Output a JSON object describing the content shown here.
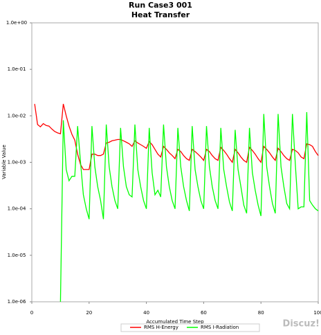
{
  "chart_data": {
    "type": "line",
    "title": "Run Case3 001",
    "subtitle": "Heat Transfer",
    "x_label": "Accumulated Time Step",
    "y_label": "Variable Value",
    "log_scale_y": true,
    "legend": "bottom",
    "watermark": "Discuz!",
    "xlim": [
      0,
      100
    ],
    "xticks": [
      0,
      20,
      40,
      60,
      80,
      100
    ],
    "ylim": [
      1e-06,
      1
    ],
    "yticks": [
      {
        "value": 1e-06,
        "label": "1.0e-06"
      },
      {
        "value": 1e-05,
        "label": "1.0e-05"
      },
      {
        "value": 0.0001,
        "label": "1.0e-04"
      },
      {
        "value": 0.001,
        "label": "1.0e-03"
      },
      {
        "value": 0.01,
        "label": "1.0e-02"
      },
      {
        "value": 0.1,
        "label": "1.0e-01"
      },
      {
        "value": 1,
        "label": "1.0e+00"
      }
    ],
    "x": [
      1,
      2,
      3,
      4,
      5,
      6,
      7,
      8,
      9,
      10,
      11,
      12,
      13,
      14,
      15,
      16,
      17,
      18,
      19,
      20,
      21,
      22,
      23,
      24,
      25,
      26,
      27,
      28,
      29,
      30,
      31,
      32,
      33,
      34,
      35,
      36,
      37,
      38,
      39,
      40,
      41,
      42,
      43,
      44,
      45,
      46,
      47,
      48,
      49,
      50,
      51,
      52,
      53,
      54,
      55,
      56,
      57,
      58,
      59,
      60,
      61,
      62,
      63,
      64,
      65,
      66,
      67,
      68,
      69,
      70,
      71,
      72,
      73,
      74,
      75,
      76,
      77,
      78,
      79,
      80,
      81,
      82,
      83,
      84,
      85,
      86,
      87,
      88,
      89,
      90,
      91,
      92,
      93,
      94,
      95,
      96,
      97,
      98,
      99,
      100
    ],
    "series": [
      {
        "name": "RMS H-Energy",
        "color": "#ff0000",
        "values": [
          0.018,
          0.0065,
          0.0058,
          0.0068,
          0.0062,
          0.006,
          0.0052,
          0.0046,
          0.0043,
          0.0041,
          0.018,
          0.01,
          0.006,
          0.004,
          0.003,
          0.0015,
          0.0009,
          0.0007,
          0.0007,
          0.0007,
          0.0015,
          0.0015,
          0.0014,
          0.0014,
          0.0015,
          0.0026,
          0.0027,
          0.0029,
          0.003,
          0.0031,
          0.0031,
          0.0029,
          0.0027,
          0.0025,
          0.0022,
          0.0029,
          0.0026,
          0.0024,
          0.0022,
          0.002,
          0.0028,
          0.0024,
          0.0019,
          0.0015,
          0.0013,
          0.0022,
          0.0019,
          0.0016,
          0.0014,
          0.0012,
          0.0019,
          0.0017,
          0.0014,
          0.0012,
          0.0011,
          0.0019,
          0.0017,
          0.0015,
          0.0013,
          0.0011,
          0.0019,
          0.0017,
          0.0014,
          0.0012,
          0.0011,
          0.0021,
          0.0018,
          0.0015,
          0.0012,
          0.001,
          0.0019,
          0.0016,
          0.0013,
          0.0011,
          0.001,
          0.0021,
          0.0018,
          0.0015,
          0.0012,
          0.001,
          0.0022,
          0.0019,
          0.0016,
          0.0013,
          0.0011,
          0.002,
          0.0017,
          0.0014,
          0.0012,
          0.0011,
          0.0019,
          0.0018,
          0.0016,
          0.0013,
          0.0012,
          0.0025,
          0.0024,
          0.0022,
          0.0017,
          0.0014
        ]
      },
      {
        "name": "RMS I-Radiation",
        "color": "#00ff00",
        "values": [
          null,
          null,
          null,
          null,
          null,
          null,
          null,
          null,
          null,
          1e-06,
          0.008,
          0.0007,
          0.0004,
          0.0005,
          0.0005,
          0.006,
          0.001,
          0.0002,
          0.0001,
          6e-05,
          0.006,
          0.0008,
          0.0003,
          0.00015,
          6e-05,
          0.0065,
          0.0008,
          0.0003,
          0.00015,
          0.0001,
          0.0055,
          0.0008,
          0.0003,
          0.0002,
          0.00018,
          0.0065,
          0.0007,
          0.0003,
          0.00015,
          0.0001,
          0.0055,
          0.0006,
          0.0002,
          0.00025,
          0.00018,
          0.0065,
          0.0008,
          0.0003,
          0.00015,
          0.0001,
          0.0055,
          0.0008,
          0.0003,
          0.00015,
          9e-05,
          0.006,
          0.0007,
          0.0003,
          0.00015,
          0.0001,
          0.006,
          0.0008,
          0.0003,
          0.00015,
          0.0001,
          0.0055,
          0.0007,
          0.0003,
          0.00014,
          9e-05,
          0.005,
          0.0007,
          0.0003,
          0.00012,
          8e-05,
          0.0055,
          0.0006,
          0.00025,
          0.00012,
          7e-05,
          0.011,
          0.0008,
          0.0003,
          0.00013,
          8e-05,
          0.011,
          0.0008,
          0.0003,
          0.00013,
          0.0001,
          0.011,
          0.0009,
          0.0001,
          0.00011,
          0.00011,
          0.012,
          0.00015,
          0.00012,
          0.0001,
          9e-05
        ]
      }
    ]
  }
}
